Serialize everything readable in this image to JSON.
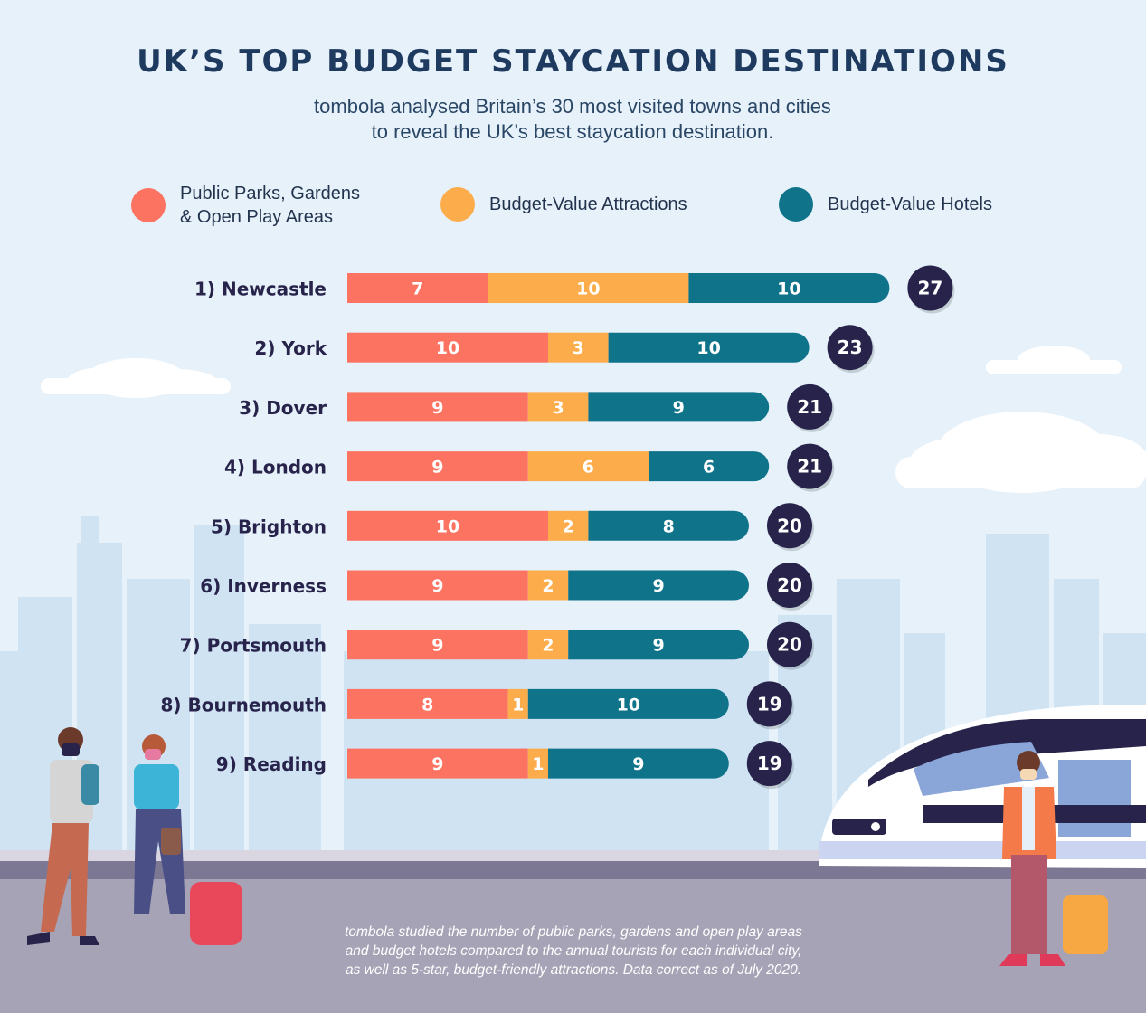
{
  "title": "UK’S TOP BUDGET STAYCATION DESTINATIONS",
  "subtitle": [
    "tombola analysed Britain’s 30 most visited towns and cities",
    "to reveal the UK’s best staycation destination."
  ],
  "colors": {
    "parks": "#fd7361",
    "attractions": "#fcac4b",
    "hotels": "#0f738a",
    "total": "#27234a",
    "title": "#1e3a5f"
  },
  "legend": [
    {
      "label": "Public Parks, Gardens\n& Open Play Areas",
      "color": "#fd7361"
    },
    {
      "label": "Budget-Value Attractions",
      "color": "#fcac4b"
    },
    {
      "label": "Budget-Value Hotels",
      "color": "#0f738a"
    }
  ],
  "chart_data": {
    "type": "bar",
    "orientation": "horizontal",
    "stacked": true,
    "categories": [
      "1) Newcastle",
      "2) York",
      "3) Dover",
      "4) London",
      "5) Brighton",
      "6) Inverness",
      "7) Portsmouth",
      "8) Bournemouth",
      "9) Reading"
    ],
    "series": [
      {
        "name": "Public Parks, Gardens & Open Play Areas",
        "color": "#fd7361",
        "values": [
          7,
          10,
          9,
          9,
          10,
          9,
          9,
          8,
          9
        ]
      },
      {
        "name": "Budget-Value Attractions",
        "color": "#fcac4b",
        "values": [
          10,
          3,
          3,
          6,
          2,
          2,
          2,
          1,
          1
        ]
      },
      {
        "name": "Budget-Value Hotels",
        "color": "#0f738a",
        "values": [
          10,
          10,
          9,
          6,
          8,
          9,
          9,
          10,
          9
        ]
      }
    ],
    "totals": [
      27,
      23,
      21,
      21,
      20,
      20,
      20,
      19,
      19
    ],
    "data_labels": true,
    "grid": false,
    "legend_position": "top"
  },
  "footnote": [
    "tombola studied the number of public parks, gardens and open play areas",
    "and budget hotels compared to the annual tourists for each individual city,",
    "as well as 5-star, budget-friendly attractions. Data correct as of July 2020."
  ]
}
